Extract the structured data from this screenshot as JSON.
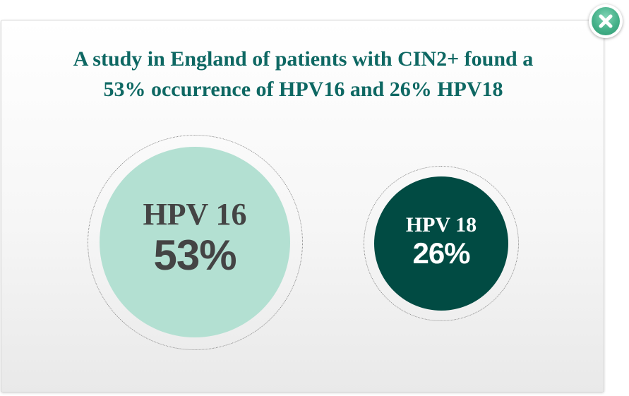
{
  "headline": {
    "line1": "A study in England of patients with CIN2+ found a",
    "line2": "53% occurrence of HPV16 and 26% HPV18"
  },
  "bubbles": [
    {
      "label": "HPV 16",
      "value": "53%",
      "percent": 53,
      "color": "#b3e0d2"
    },
    {
      "label": "HPV 18",
      "value": "26%",
      "percent": 26,
      "color": "#014b43"
    }
  ],
  "close_button": {
    "icon": "close-icon",
    "color": "#45b189"
  },
  "colors": {
    "headline": "#0e6863"
  }
}
